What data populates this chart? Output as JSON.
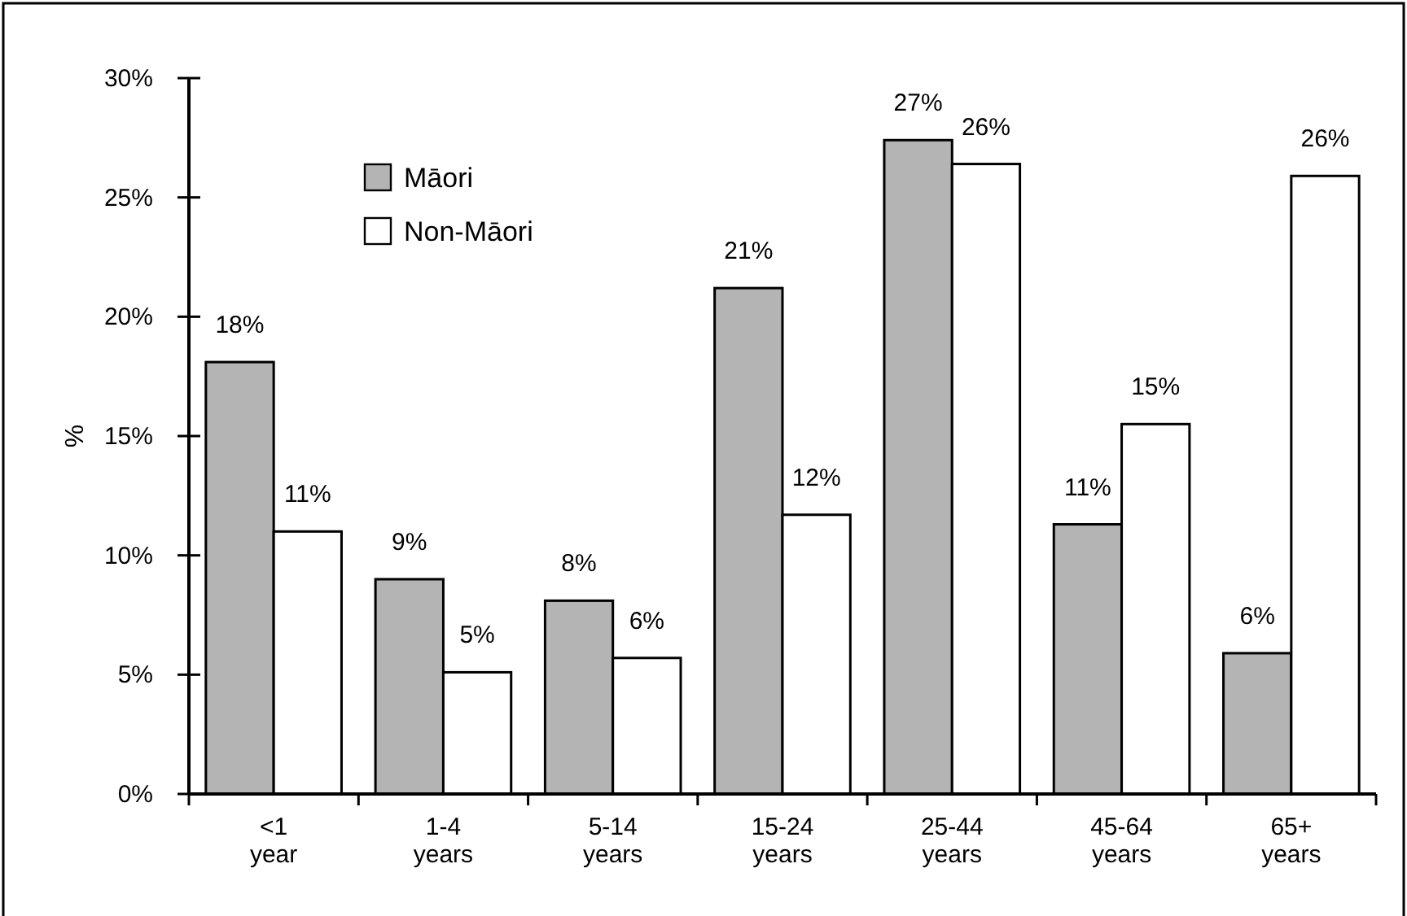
{
  "chart_data": {
    "type": "bar",
    "ylabel": "%",
    "categories": [
      "<1 year",
      "1-4 years",
      "5-14 years",
      "15-24 years",
      "25-44 years",
      "45-64 years",
      "65+ years"
    ],
    "series": [
      {
        "name": "Māori",
        "color": "#b4b4b4",
        "values": [
          18.1,
          9,
          8.1,
          21.2,
          27.4,
          11.3,
          5.9
        ],
        "value_labels": [
          "18%",
          "9%",
          "8%",
          "21%",
          "27%",
          "11%",
          "6%"
        ]
      },
      {
        "name": "Non-Māori",
        "color": "#ffffff",
        "values": [
          11,
          5.1,
          5.7,
          11.7,
          26.4,
          15.5,
          25.9
        ],
        "value_labels": [
          "11%",
          "5%",
          "6%",
          "12%",
          "26%",
          "15%",
          "26%"
        ]
      }
    ],
    "ylim": [
      0,
      30
    ],
    "yticks": [
      {
        "value": 0,
        "label": "0%"
      },
      {
        "value": 5,
        "label": "5%"
      },
      {
        "value": 10,
        "label": "10%"
      },
      {
        "value": 15,
        "label": "15%"
      },
      {
        "value": 20,
        "label": "20%"
      },
      {
        "value": 25,
        "label": "25%"
      },
      {
        "value": 30,
        "label": "30%"
      }
    ],
    "legend": "top left"
  }
}
